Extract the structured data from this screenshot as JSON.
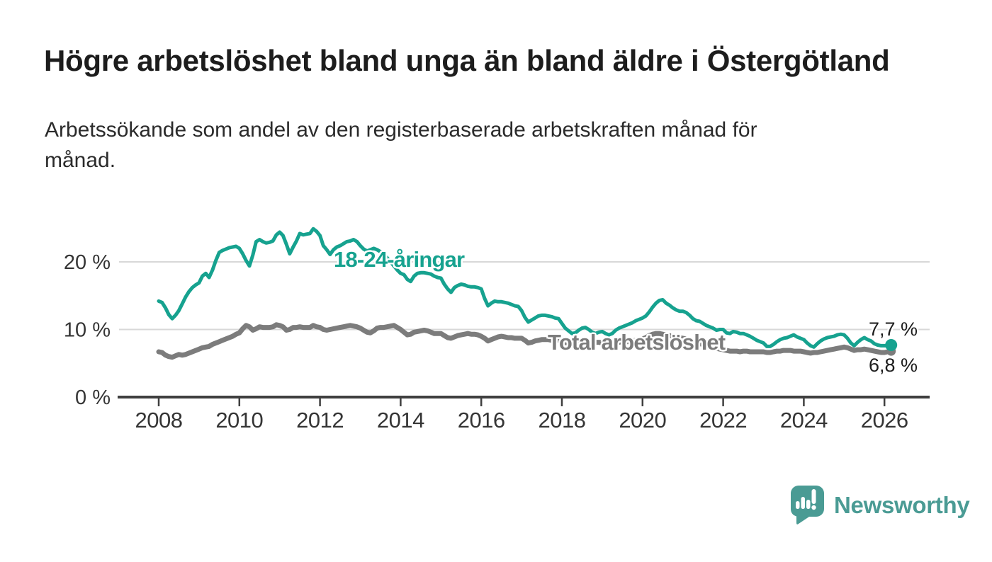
{
  "header": {
    "title": "Högre arbetslöshet bland unga än bland äldre i Östergötland",
    "subtitle_lines": [
      "Arbetssökande som andel av den registerbaserade arbetskraften månad för",
      "månad."
    ]
  },
  "chart_data": {
    "type": "line",
    "unit": "%",
    "frequency": "monthly",
    "x_start": {
      "year": 2008,
      "month": 1
    },
    "x_end": {
      "year": 2026,
      "month": 3
    },
    "ylim": [
      0,
      26
    ],
    "grid": "horizontal",
    "grid_color": "#d8d8d8",
    "axis_color": "#3f3f3f",
    "x_ticks": [
      2008,
      2010,
      2012,
      2014,
      2016,
      2018,
      2020,
      2022,
      2024,
      2026
    ],
    "y_ticks": [
      {
        "value": 0,
        "label": "0 %"
      },
      {
        "value": 10,
        "label": "10 %"
      },
      {
        "value": 20,
        "label": "20 %"
      }
    ],
    "series": [
      {
        "name": "18-24-åringar",
        "color": "#16a28f",
        "stroke_width": 5,
        "end_label": "7,7 %",
        "end_value": 7.7,
        "end_dot": true,
        "values": [
          14.2,
          14.0,
          13.2,
          12.2,
          11.6,
          12.1,
          12.8,
          13.8,
          14.8,
          15.6,
          16.2,
          16.6,
          16.9,
          17.9,
          18.3,
          17.7,
          18.8,
          20.2,
          21.4,
          21.7,
          21.9,
          22.1,
          22.2,
          22.3,
          22.0,
          21.2,
          20.2,
          19.4,
          21.0,
          23.0,
          23.3,
          23.0,
          22.8,
          22.9,
          23.1,
          24.0,
          24.4,
          23.9,
          22.6,
          21.2,
          22.2,
          23.1,
          24.2,
          24.0,
          24.1,
          24.2,
          24.9,
          24.5,
          23.9,
          22.4,
          21.8,
          21.1,
          21.8,
          22.2,
          22.4,
          22.7,
          23.0,
          23.1,
          23.3,
          23.0,
          22.4,
          21.9,
          21.6,
          21.8,
          22.0,
          21.8,
          21.5,
          21.1,
          20.6,
          20.0,
          19.4,
          18.8,
          18.3,
          18.1,
          17.4,
          17.1,
          17.9,
          18.3,
          18.4,
          18.4,
          18.3,
          18.2,
          17.9,
          17.7,
          17.6,
          16.7,
          16.0,
          15.5,
          16.2,
          16.5,
          16.7,
          16.6,
          16.4,
          16.3,
          16.3,
          16.2,
          16.0,
          14.6,
          13.5,
          13.9,
          14.2,
          14.1,
          14.1,
          14.0,
          13.9,
          13.7,
          13.5,
          13.4,
          12.8,
          11.8,
          11.1,
          11.4,
          11.7,
          12.0,
          12.1,
          12.1,
          12.0,
          11.9,
          11.7,
          11.6,
          10.9,
          10.2,
          9.8,
          9.4,
          9.5,
          9.9,
          10.2,
          10.3,
          10.0,
          9.6,
          9.4,
          9.6,
          9.7,
          9.4,
          9.2,
          9.4,
          9.9,
          10.2,
          10.4,
          10.6,
          10.8,
          11.0,
          11.3,
          11.5,
          11.7,
          12.0,
          12.6,
          13.3,
          13.9,
          14.3,
          14.4,
          13.9,
          13.6,
          13.2,
          12.9,
          12.7,
          12.7,
          12.5,
          12.1,
          11.6,
          11.3,
          11.2,
          10.9,
          10.6,
          10.4,
          10.2,
          9.9,
          10.0,
          10.0,
          9.5,
          9.4,
          9.7,
          9.6,
          9.4,
          9.4,
          9.2,
          9.0,
          8.7,
          8.4,
          8.2,
          8.0,
          7.5,
          7.5,
          7.8,
          8.2,
          8.5,
          8.7,
          8.8,
          9.0,
          9.2,
          8.9,
          8.7,
          8.5,
          8.0,
          7.6,
          7.4,
          7.9,
          8.3,
          8.6,
          8.8,
          8.9,
          9.0,
          9.2,
          9.3,
          9.2,
          8.7,
          8.0,
          7.6,
          8.1,
          8.5,
          8.8,
          8.5,
          8.3,
          7.9,
          7.7,
          7.6,
          7.6,
          7.6,
          7.7
        ]
      },
      {
        "name": "Total arbetslöshet",
        "color": "#7c7c7c",
        "stroke_width": 7,
        "end_label": "6,8 %",
        "end_value": 6.8,
        "end_dot": true,
        "values": [
          6.7,
          6.6,
          6.2,
          6.0,
          5.9,
          6.1,
          6.3,
          6.2,
          6.3,
          6.5,
          6.7,
          6.9,
          7.1,
          7.3,
          7.4,
          7.5,
          7.8,
          8.0,
          8.2,
          8.4,
          8.6,
          8.8,
          9.0,
          9.3,
          9.5,
          10.1,
          10.6,
          10.4,
          9.9,
          10.1,
          10.4,
          10.3,
          10.3,
          10.3,
          10.4,
          10.7,
          10.6,
          10.4,
          9.9,
          10.0,
          10.3,
          10.3,
          10.4,
          10.3,
          10.3,
          10.3,
          10.6,
          10.4,
          10.3,
          10.0,
          9.9,
          10.0,
          10.1,
          10.2,
          10.3,
          10.4,
          10.5,
          10.6,
          10.5,
          10.4,
          10.2,
          9.9,
          9.6,
          9.5,
          9.8,
          10.2,
          10.3,
          10.3,
          10.4,
          10.5,
          10.6,
          10.3,
          10.0,
          9.6,
          9.2,
          9.3,
          9.6,
          9.7,
          9.8,
          9.9,
          9.8,
          9.6,
          9.4,
          9.4,
          9.4,
          9.1,
          8.8,
          8.7,
          8.9,
          9.1,
          9.2,
          9.3,
          9.4,
          9.3,
          9.3,
          9.2,
          9.0,
          8.7,
          8.3,
          8.5,
          8.7,
          8.9,
          9.0,
          8.9,
          8.8,
          8.8,
          8.7,
          8.7,
          8.7,
          8.4,
          8.0,
          8.1,
          8.3,
          8.4,
          8.5,
          8.5,
          8.5,
          8.4,
          8.4,
          8.4,
          8.3,
          8.1,
          7.9,
          8.0,
          8.1,
          8.2,
          8.3,
          8.3,
          8.2,
          8.1,
          8.1,
          8.1,
          8.0,
          7.9,
          7.8,
          7.9,
          8.0,
          8.1,
          8.2,
          8.2,
          8.2,
          8.3,
          8.4,
          8.5,
          8.6,
          8.8,
          9.1,
          9.3,
          9.4,
          9.4,
          9.3,
          9.2,
          9.1,
          9.0,
          8.9,
          8.8,
          8.7,
          8.6,
          8.4,
          8.2,
          8.0,
          7.9,
          7.8,
          7.6,
          7.5,
          7.4,
          7.2,
          7.1,
          7.0,
          6.9,
          6.8,
          6.8,
          6.8,
          6.7,
          6.8,
          6.8,
          6.7,
          6.7,
          6.7,
          6.7,
          6.7,
          6.6,
          6.6,
          6.7,
          6.8,
          6.8,
          6.9,
          6.9,
          6.9,
          6.8,
          6.8,
          6.8,
          6.7,
          6.6,
          6.5,
          6.6,
          6.6,
          6.7,
          6.8,
          6.9,
          7.0,
          7.1,
          7.2,
          7.3,
          7.4,
          7.3,
          7.1,
          6.9,
          7.0,
          7.0,
          7.1,
          7.0,
          6.9,
          6.8,
          6.7,
          6.6,
          6.6,
          6.7,
          6.8
        ]
      }
    ]
  },
  "branding": {
    "wordmark": "Newsworthy",
    "logo_icon": "bar-chart-speech-bubble",
    "color": "#4a9b94"
  }
}
